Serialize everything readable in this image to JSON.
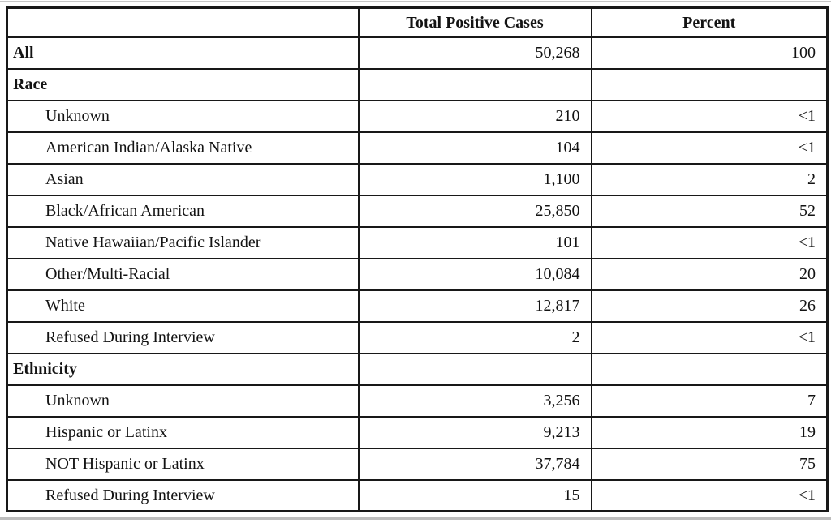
{
  "colors": {
    "background": "#ffffff",
    "border": "#181818",
    "text": "#131313",
    "scan_artifact_line": "#c0c0c0"
  },
  "table": {
    "columns": [
      "",
      "Total Positive Cases",
      "Percent"
    ],
    "rows": [
      {
        "label": "All",
        "bold": true,
        "indent": false,
        "cases": "50,268",
        "percent": "100"
      },
      {
        "label": "Race",
        "bold": true,
        "indent": false,
        "cases": "",
        "percent": ""
      },
      {
        "label": "Unknown",
        "bold": false,
        "indent": true,
        "cases": "210",
        "percent": "<1"
      },
      {
        "label": "American Indian/Alaska Native",
        "bold": false,
        "indent": true,
        "cases": "104",
        "percent": "<1"
      },
      {
        "label": "Asian",
        "bold": false,
        "indent": true,
        "cases": "1,100",
        "percent": "2"
      },
      {
        "label": "Black/African American",
        "bold": false,
        "indent": true,
        "cases": "25,850",
        "percent": "52"
      },
      {
        "label": "Native Hawaiian/Pacific Islander",
        "bold": false,
        "indent": true,
        "cases": "101",
        "percent": "<1"
      },
      {
        "label": "Other/Multi-Racial",
        "bold": false,
        "indent": true,
        "cases": "10,084",
        "percent": "20"
      },
      {
        "label": "White",
        "bold": false,
        "indent": true,
        "cases": "12,817",
        "percent": "26"
      },
      {
        "label": "Refused During Interview",
        "bold": false,
        "indent": true,
        "cases": "2",
        "percent": "<1"
      },
      {
        "label": "Ethnicity",
        "bold": true,
        "indent": false,
        "cases": "",
        "percent": ""
      },
      {
        "label": "Unknown",
        "bold": false,
        "indent": true,
        "cases": "3,256",
        "percent": "7"
      },
      {
        "label": "Hispanic or Latinx",
        "bold": false,
        "indent": true,
        "cases": "9,213",
        "percent": "19"
      },
      {
        "label": "NOT Hispanic or Latinx",
        "bold": false,
        "indent": true,
        "cases": "37,784",
        "percent": "75"
      },
      {
        "label": "Refused During Interview",
        "bold": false,
        "indent": true,
        "cases": "15",
        "percent": "<1"
      }
    ]
  },
  "chart_data": {
    "type": "table",
    "columns": [
      "Category",
      "Total Positive Cases",
      "Percent"
    ],
    "rows": [
      {
        "category": "All",
        "section": null,
        "total_positive_cases": 50268,
        "percent": "100"
      },
      {
        "category": "Unknown",
        "section": "Race",
        "total_positive_cases": 210,
        "percent": "<1"
      },
      {
        "category": "American Indian/Alaska Native",
        "section": "Race",
        "total_positive_cases": 104,
        "percent": "<1"
      },
      {
        "category": "Asian",
        "section": "Race",
        "total_positive_cases": 1100,
        "percent": "2"
      },
      {
        "category": "Black/African American",
        "section": "Race",
        "total_positive_cases": 25850,
        "percent": "52"
      },
      {
        "category": "Native Hawaiian/Pacific Islander",
        "section": "Race",
        "total_positive_cases": 101,
        "percent": "<1"
      },
      {
        "category": "Other/Multi-Racial",
        "section": "Race",
        "total_positive_cases": 10084,
        "percent": "20"
      },
      {
        "category": "White",
        "section": "Race",
        "total_positive_cases": 12817,
        "percent": "26"
      },
      {
        "category": "Refused During Interview",
        "section": "Race",
        "total_positive_cases": 2,
        "percent": "<1"
      },
      {
        "category": "Unknown",
        "section": "Ethnicity",
        "total_positive_cases": 3256,
        "percent": "7"
      },
      {
        "category": "Hispanic or Latinx",
        "section": "Ethnicity",
        "total_positive_cases": 9213,
        "percent": "19"
      },
      {
        "category": "NOT Hispanic or Latinx",
        "section": "Ethnicity",
        "total_positive_cases": 37784,
        "percent": "75"
      },
      {
        "category": "Refused During Interview",
        "section": "Ethnicity",
        "total_positive_cases": 15,
        "percent": "<1"
      }
    ]
  }
}
